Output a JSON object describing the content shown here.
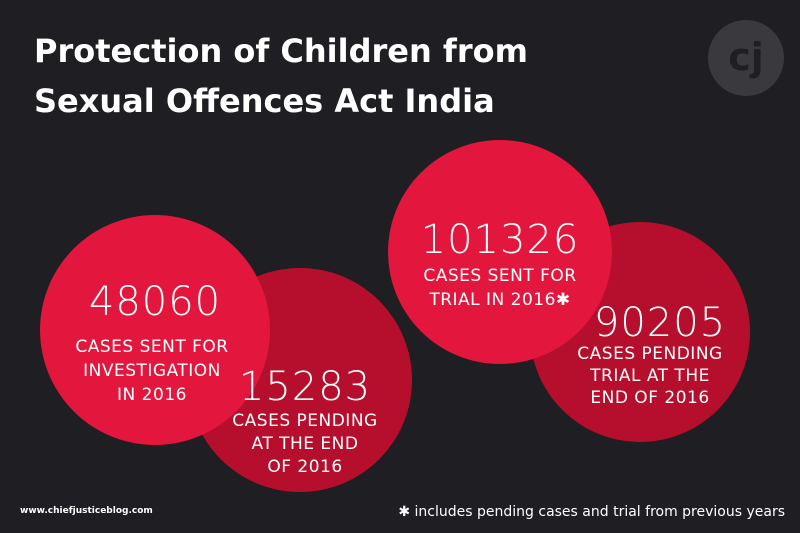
{
  "header": {
    "title_lines": [
      "Protection of Children from",
      "Sexual Offences Act India"
    ],
    "logo": "cj"
  },
  "stats": [
    {
      "number": "48060",
      "label_lines": [
        "CASES SENT FOR",
        "INVESTIGATION",
        "IN 2016"
      ]
    },
    {
      "number": "15283",
      "label_lines": [
        "CASES PENDING",
        "AT THE END",
        "OF 2016"
      ]
    },
    {
      "number": "101326",
      "label_lines": [
        "CASES SENT FOR",
        "TRIAL IN 2016✱"
      ]
    },
    {
      "number": "90205",
      "label_lines": [
        "CASES PENDING",
        "TRIAL AT THE",
        "END OF 2016"
      ]
    }
  ],
  "footer": {
    "website": "www.chiefjusticeblog.com",
    "footnote": "✱ includes pending cases and trial from previous years"
  }
}
